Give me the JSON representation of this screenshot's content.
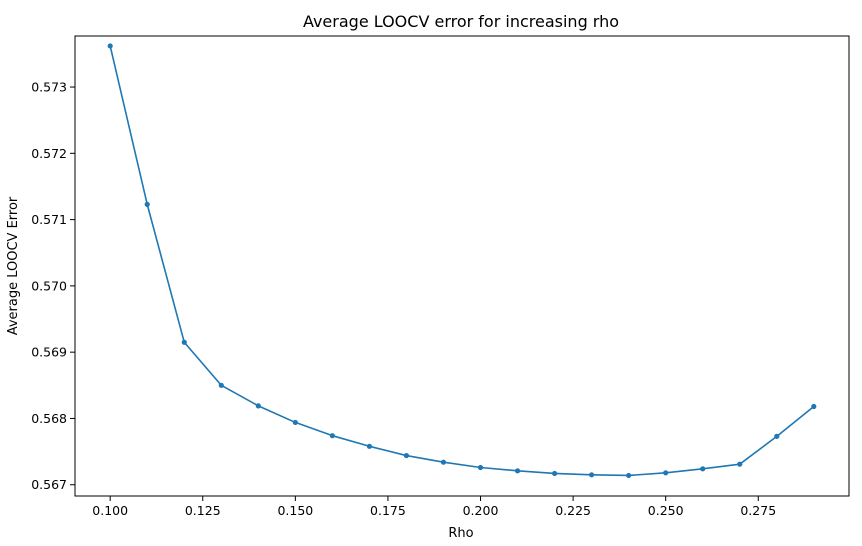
{
  "chart_data": {
    "type": "line",
    "title": "Average LOOCV error for increasing rho",
    "xlabel": "Rho",
    "ylabel": "Average LOOCV Error",
    "grid": false,
    "legend": "none",
    "xlim": [
      0.0905,
      0.2995
    ],
    "ylim": [
      0.56683,
      0.57377
    ],
    "xticks": [
      0.1,
      0.125,
      0.15,
      0.175,
      0.2,
      0.225,
      0.25,
      0.275
    ],
    "xtick_labels": [
      "0.100",
      "0.125",
      "0.150",
      "0.175",
      "0.200",
      "0.225",
      "0.250",
      "0.275"
    ],
    "yticks": [
      0.567,
      0.568,
      0.569,
      0.57,
      0.571,
      0.572,
      0.573
    ],
    "ytick_labels": [
      "0.567",
      "0.568",
      "0.569",
      "0.570",
      "0.571",
      "0.572",
      "0.573"
    ],
    "series": [
      {
        "color": "#1f77b4",
        "marker": "circle",
        "x": [
          0.1,
          0.11,
          0.12,
          0.13,
          0.14,
          0.15,
          0.16,
          0.17,
          0.18,
          0.19,
          0.2,
          0.21,
          0.22,
          0.23,
          0.24,
          0.25,
          0.26,
          0.27,
          0.28,
          0.29
        ],
        "y": [
          0.57362,
          0.57123,
          0.56915,
          0.5685,
          0.56819,
          0.56794,
          0.56774,
          0.56758,
          0.56744,
          0.56734,
          0.56726,
          0.56721,
          0.56717,
          0.56715,
          0.56714,
          0.56718,
          0.56724,
          0.56731,
          0.56773,
          0.56818
        ]
      }
    ]
  }
}
